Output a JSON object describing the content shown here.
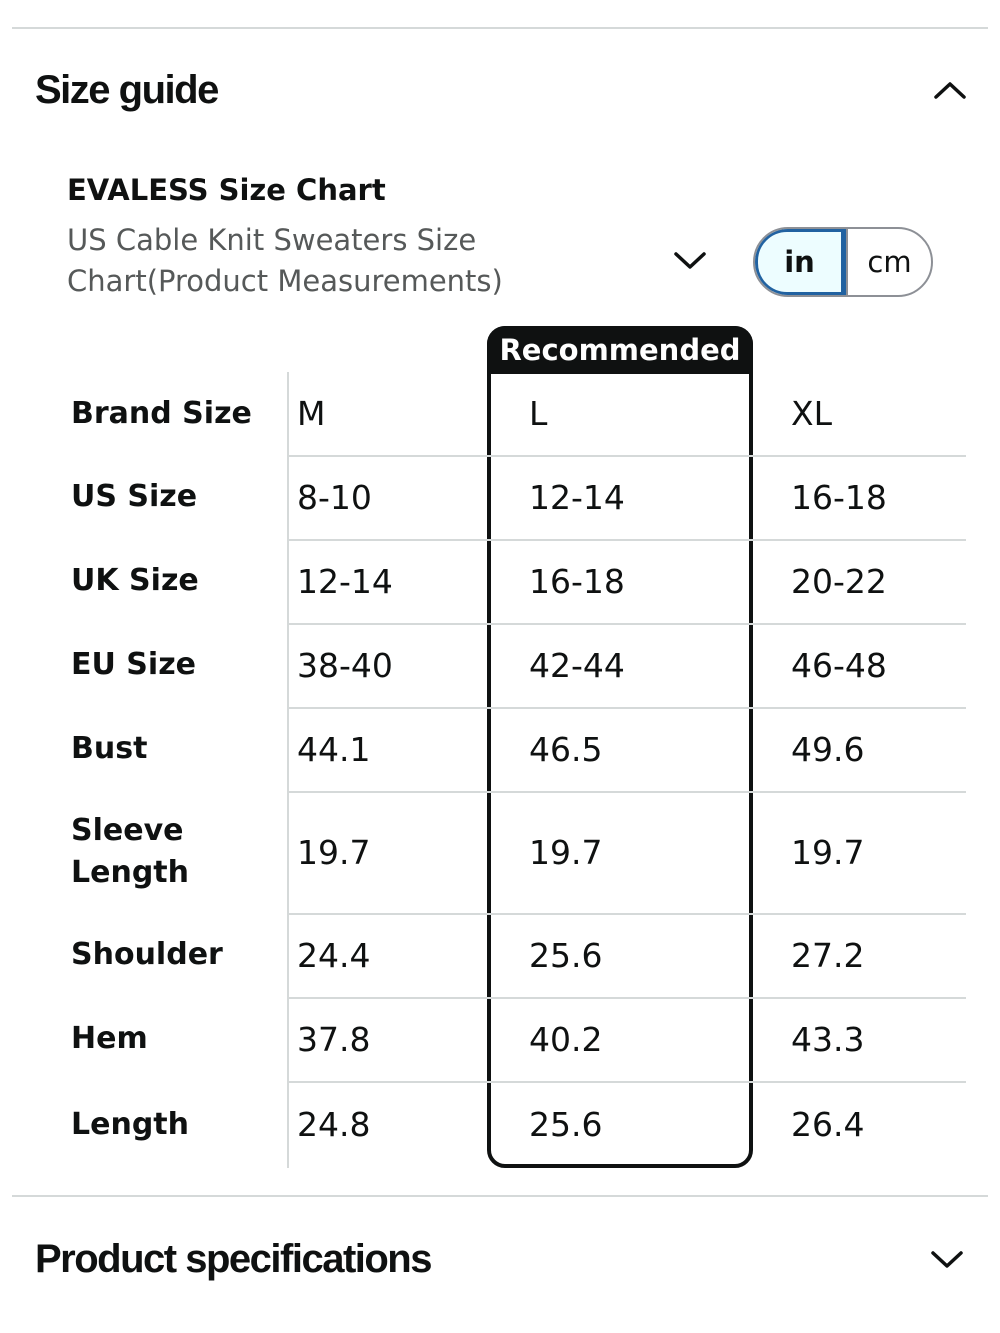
{
  "size_guide": {
    "title": "Size guide",
    "chart_title": "EVALESS Size Chart",
    "chart_subtitle": "US Cable Knit Sweaters Size Chart(Product Measurements)",
    "units": {
      "in": "in",
      "cm": "cm",
      "selected": "in"
    },
    "recommended_label": "Recommended",
    "table": {
      "header": {
        "label": "Brand Size",
        "sizes": [
          "M",
          "L",
          "XL"
        ]
      },
      "rows": [
        {
          "label": "US Size",
          "values": [
            "8-10",
            "12-14",
            "16-18"
          ]
        },
        {
          "label": "UK Size",
          "values": [
            "12-14",
            "16-18",
            "20-22"
          ]
        },
        {
          "label": "EU Size",
          "values": [
            "38-40",
            "42-44",
            "46-48"
          ]
        },
        {
          "label": "Bust",
          "values": [
            "44.1",
            "46.5",
            "49.6"
          ]
        },
        {
          "label": "Sleeve Length",
          "values": [
            "19.7",
            "19.7",
            "19.7"
          ]
        },
        {
          "label": "Shoulder",
          "values": [
            "24.4",
            "25.6",
            "27.2"
          ]
        },
        {
          "label": "Hem",
          "values": [
            "37.8",
            "40.2",
            "43.3"
          ]
        },
        {
          "label": "Length",
          "values": [
            "24.8",
            "25.6",
            "26.4"
          ]
        }
      ]
    }
  },
  "product_specs": {
    "title": "Product specifications"
  },
  "icons": {
    "collapse": "chevron-up-icon",
    "expand": "chevron-down-icon",
    "dropdown": "chevron-down-icon"
  }
}
